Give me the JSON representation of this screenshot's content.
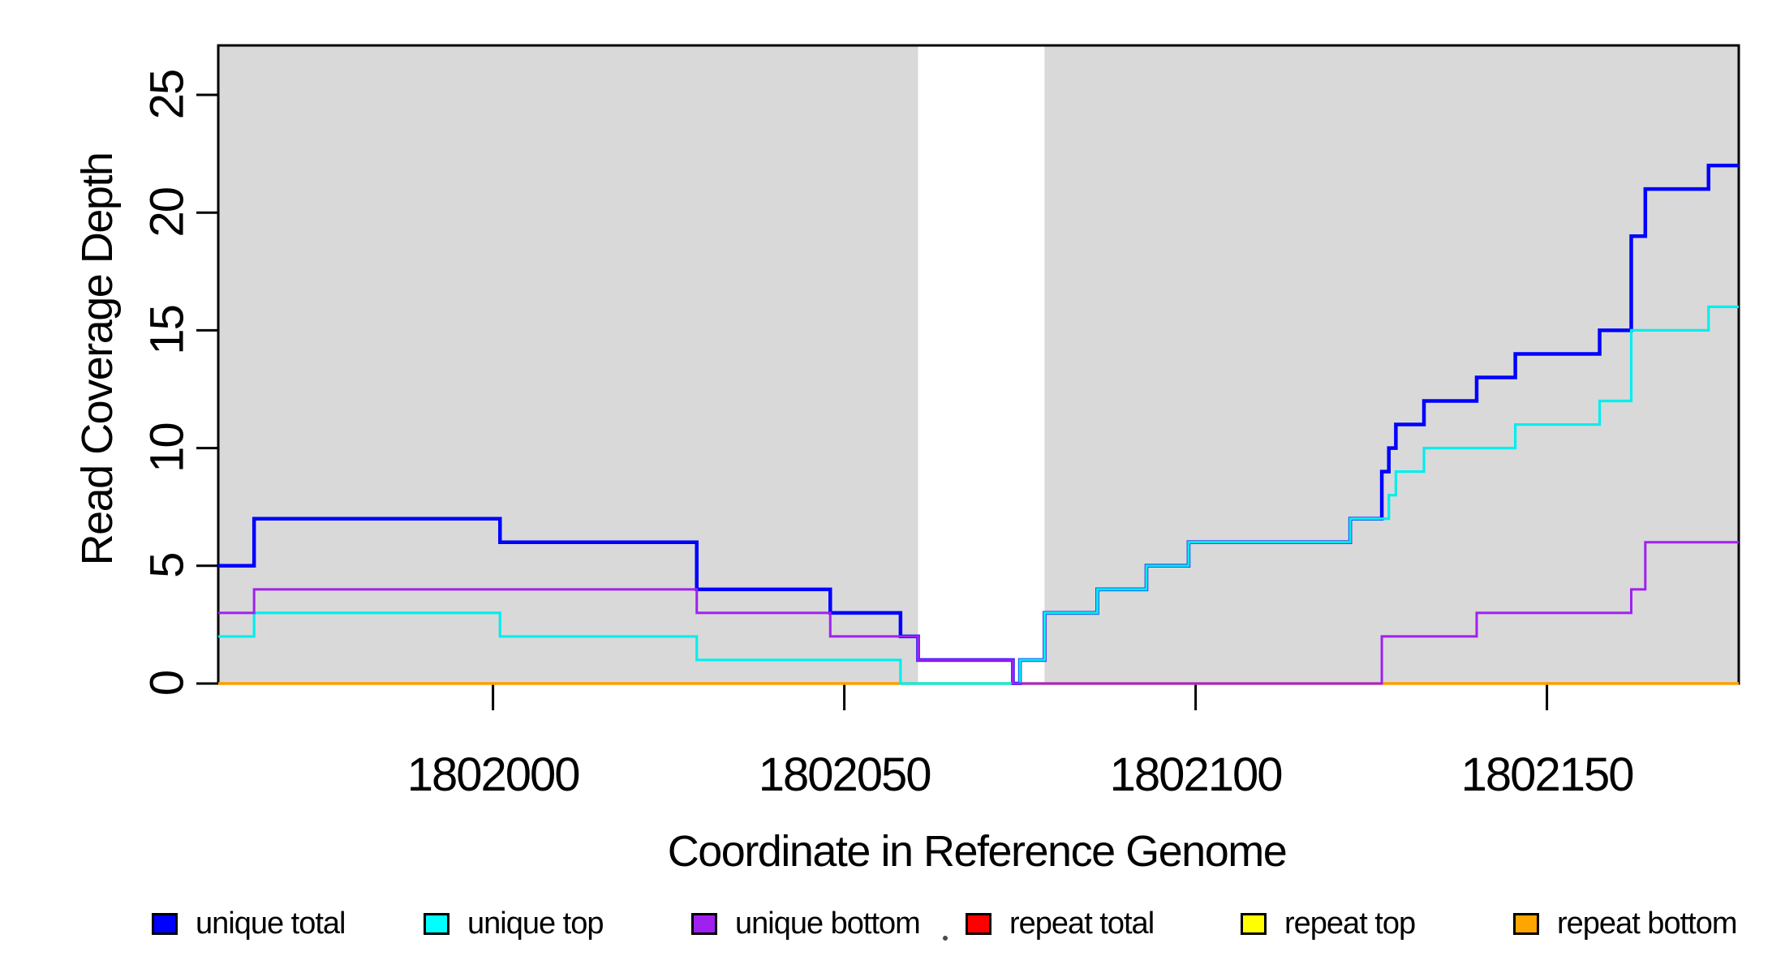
{
  "chart_data": {
    "type": "line",
    "subtype": "step-post",
    "title": "",
    "xlabel": "Coordinate in Reference Genome",
    "ylabel": "Read Coverage Depth",
    "xlim": [
      1801960.9,
      1802177.3
    ],
    "ylim": [
      0,
      27.1
    ],
    "x_ticks": [
      "1802000",
      "1802050",
      "1802100",
      "1802150"
    ],
    "x_tick_values": [
      1802000,
      1802050,
      1802100,
      1802150
    ],
    "y_ticks": [
      "0",
      "5",
      "10",
      "15",
      "20",
      "25"
    ],
    "y_tick_values": [
      0,
      5,
      10,
      15,
      20,
      25
    ],
    "grid": false,
    "plot_background": "#FFFFFF",
    "shading_color": "#D9D9D9",
    "shaded_regions": [
      {
        "x0": 1801960.9,
        "x1": 1802060.5
      },
      {
        "x0": 1802078.5,
        "x1": 1802177.3
      }
    ],
    "unshaded_gap": {
      "x0": 1802060.5,
      "x1": 1802078.5
    },
    "series": [
      {
        "name": "unique total",
        "color": "#0000FF",
        "line_width": 4.5,
        "points": [
          [
            1801960.9,
            5
          ],
          [
            1801966,
            7
          ],
          [
            1802001,
            6
          ],
          [
            1802029,
            4
          ],
          [
            1802048,
            3
          ],
          [
            1802058,
            2
          ],
          [
            1802060.5,
            1
          ],
          [
            1802074,
            0
          ],
          [
            1802075,
            1
          ],
          [
            1802078.5,
            3
          ],
          [
            1802086,
            4
          ],
          [
            1802093,
            5
          ],
          [
            1802099,
            6
          ],
          [
            1802122,
            7
          ],
          [
            1802126.5,
            9
          ],
          [
            1802127.5,
            10
          ],
          [
            1802128.5,
            11
          ],
          [
            1802132.5,
            12
          ],
          [
            1802140,
            13
          ],
          [
            1802145.5,
            14
          ],
          [
            1802157.5,
            15
          ],
          [
            1802162,
            19
          ],
          [
            1802164,
            21
          ],
          [
            1802173,
            22
          ]
        ]
      },
      {
        "name": "unique top",
        "color": "#00EEEE",
        "line_width": 3.2,
        "points": [
          [
            1801960.9,
            2
          ],
          [
            1801966,
            3
          ],
          [
            1802001,
            2
          ],
          [
            1802029,
            1
          ],
          [
            1802058,
            0
          ],
          [
            1802075,
            1
          ],
          [
            1802078.5,
            3
          ],
          [
            1802086,
            4
          ],
          [
            1802093,
            5
          ],
          [
            1802099,
            6
          ],
          [
            1802122,
            7
          ],
          [
            1802127.5,
            8
          ],
          [
            1802128.5,
            9
          ],
          [
            1802132.5,
            10
          ],
          [
            1802145.5,
            11
          ],
          [
            1802157.5,
            12
          ],
          [
            1802162,
            15
          ],
          [
            1802173,
            16
          ]
        ]
      },
      {
        "name": "unique bottom",
        "color": "#A020F0",
        "line_width": 3,
        "points": [
          [
            1801960.9,
            3
          ],
          [
            1801966,
            4
          ],
          [
            1802029,
            3
          ],
          [
            1802048,
            2
          ],
          [
            1802060.5,
            1
          ],
          [
            1802074,
            0
          ],
          [
            1802126.5,
            2
          ],
          [
            1802140,
            3
          ],
          [
            1802162,
            4
          ],
          [
            1802164,
            6
          ]
        ]
      },
      {
        "name": "repeat total",
        "color": "#FF0000",
        "line_width": 3,
        "points": [
          [
            1801960.9,
            0
          ]
        ]
      },
      {
        "name": "repeat top",
        "color": "#FFFF00",
        "line_width": 3,
        "points": [
          [
            1801960.9,
            0
          ]
        ]
      },
      {
        "name": "repeat bottom",
        "color": "#FF9D00",
        "line_width": 3.5,
        "points": [
          [
            1801960.9,
            0
          ]
        ]
      }
    ],
    "legend": {
      "position": "bottom",
      "items": [
        {
          "label": "unique total",
          "color": "#0000FF"
        },
        {
          "label": "unique top",
          "color": "#00FFFF"
        },
        {
          "label": "unique bottom",
          "color": "#A020F0"
        },
        {
          "label": "repeat total",
          "color": "#FF0000"
        },
        {
          "label": "repeat top",
          "color": "#FFFF00"
        },
        {
          "label": "repeat bottom",
          "color": "#FFA500"
        }
      ]
    }
  }
}
